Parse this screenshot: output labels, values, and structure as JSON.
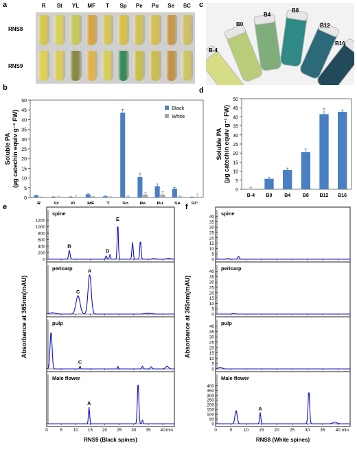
{
  "panels": {
    "a": "a",
    "b": "b",
    "c": "c",
    "d": "d",
    "e": "e",
    "f": "f"
  },
  "panel_a": {
    "columns": [
      "R",
      "St",
      "YL",
      "MF",
      "T",
      "Sp",
      "Pe",
      "Pu",
      "Se",
      "SC"
    ],
    "rows": [
      "RNS8",
      "RNS9"
    ],
    "colors_rns8": [
      "#d8c84a",
      "#d9cf5a",
      "#c9c85a",
      "#d8a540",
      "#d8c55a",
      "#d8c045",
      "#d2c055",
      "#d4c050",
      "#c89a45",
      "#cfc060"
    ],
    "colors_rns9": [
      "#e0d050",
      "#dccc55",
      "#8a8a45",
      "#e0b44a",
      "#d8cc5a",
      "#3a8a5a",
      "#c9c04a",
      "#cdbd4e",
      "#c29245",
      "#d0c460"
    ]
  },
  "panel_c": {
    "labels": [
      "B-4",
      "B0",
      "B4",
      "B8",
      "B12",
      "B16"
    ],
    "colors": [
      "#d7dd86",
      "#b9cc7a",
      "#7fae7a",
      "#2f8a86",
      "#2c6a7a",
      "#234a5a"
    ]
  },
  "chart_data": [
    {
      "type": "bar",
      "id": "b",
      "categories": [
        "R",
        "St",
        "YL",
        "MF",
        "T",
        "Sp",
        "Pe",
        "Pu",
        "Se",
        "SC"
      ],
      "series": [
        {
          "name": "Black",
          "color": "#4a7fc1",
          "values": [
            1.0,
            0.3,
            0.3,
            1.6,
            0.6,
            43.5,
            10.5,
            5.8,
            4.5,
            0.2
          ],
          "errors": [
            0.3,
            0.1,
            0.1,
            0.3,
            0.2,
            1.8,
            2.0,
            1.2,
            0.7,
            0.1
          ]
        },
        {
          "name": "White",
          "color": "#a6a6a6",
          "values": [
            0.2,
            0.2,
            0.3,
            0.4,
            0.2,
            0.5,
            1.5,
            1.5,
            0.5,
            0.3
          ],
          "errors": [
            0.1,
            0.3,
            0.9,
            0.2,
            0.2,
            0.3,
            1.2,
            1.5,
            0.3,
            1.5
          ]
        }
      ],
      "ylim": [
        0,
        50
      ],
      "yticks": [
        0,
        5,
        10,
        15,
        20,
        25,
        30,
        35,
        40,
        45,
        50
      ],
      "ylabel_line1": "Soluble PA",
      "ylabel_line2": "(µg catechin equiv g⁻¹ FW)",
      "legend_position": "top-right"
    },
    {
      "type": "bar",
      "id": "d",
      "categories": [
        "B-4",
        "B0",
        "B4",
        "B8",
        "B12",
        "B16"
      ],
      "series": [
        {
          "name": "",
          "color": "#4a7fc1",
          "values": [
            0.1,
            5.8,
            10.6,
            20.5,
            41.5,
            42.8
          ],
          "errors": [
            1.0,
            0.9,
            1.1,
            1.8,
            3.0,
            1.0
          ]
        }
      ],
      "ylim": [
        0,
        50
      ],
      "yticks": [
        0,
        5,
        10,
        15,
        20,
        25,
        30,
        35,
        40,
        45,
        50
      ],
      "ylabel_line1": "Soluble PA",
      "ylabel_line2": "(µg catechin equiv g⁻¹ FW)"
    },
    {
      "type": "line",
      "id": "e",
      "ylabel": "Absorbance at 365nm(mAU)",
      "xlabel": "RNS9 (Black spines)",
      "xticks": [
        0,
        5,
        10,
        15,
        20,
        25,
        30,
        35,
        40
      ],
      "x_unit": "min",
      "xlim": [
        0,
        44
      ],
      "subplots": [
        {
          "name": "spine",
          "ylim": [
            0,
            1350
          ],
          "yticks": [
            0,
            200,
            400,
            600,
            800,
            1000,
            1200
          ],
          "peaks": [
            [
              7.8,
              280,
              0.25
            ],
            [
              20.5,
              110,
              0.2
            ],
            [
              21.8,
              140,
              0.2
            ],
            [
              24.5,
              1120,
              0.2
            ],
            [
              29.6,
              520,
              0.22
            ],
            [
              32.3,
              580,
              0.22
            ],
            [
              37,
              20,
              0.5
            ],
            [
              42,
              30,
              0.6
            ]
          ],
          "annotations": [
            {
              "x": 7.8,
              "y": 280,
              "label": "B"
            },
            {
              "x": 21,
              "y": 140,
              "label": "D"
            },
            {
              "x": 24.5,
              "y": 1120,
              "label": "E"
            }
          ]
        },
        {
          "name": "pericarp",
          "ylim": [
            0,
            1
          ],
          "yticks": [],
          "peaks": [
            [
              10.8,
              0.42,
              0.7
            ],
            [
              14.8,
              0.9,
              0.55
            ],
            [
              2,
              0.03,
              1
            ],
            [
              35,
              0.02,
              1
            ]
          ],
          "annotations": [
            {
              "x": 10.8,
              "y": 0.42,
              "label": "C"
            },
            {
              "x": 14.8,
              "y": 0.9,
              "label": "A"
            }
          ]
        },
        {
          "name": "pulp",
          "ylim": [
            0,
            1
          ],
          "yticks": [],
          "peaks": [
            [
              1.5,
              0.85,
              0.35
            ],
            [
              11.5,
              0.07,
              0.15
            ],
            [
              24.5,
              0.07,
              0.12
            ],
            [
              33,
              0.06,
              0.25
            ],
            [
              36,
              0.05,
              0.3
            ],
            [
              41.5,
              0.06,
              0.5
            ]
          ],
          "annotations": [
            {
              "x": 11.5,
              "y": 0.07,
              "label": "C"
            }
          ]
        },
        {
          "name": "Male flower",
          "ylim": [
            0,
            1
          ],
          "yticks": [],
          "peaks": [
            [
              14.6,
              0.38,
              0.2
            ],
            [
              31.5,
              0.95,
              0.25
            ],
            [
              33,
              0.08,
              0.2
            ]
          ],
          "annotations": [
            {
              "x": 14.6,
              "y": 0.38,
              "label": "A"
            }
          ]
        }
      ]
    },
    {
      "type": "line",
      "id": "f",
      "ylabel": "Absorbance at 365nm(mAU)",
      "xlabel": "RNS8 (White spines)",
      "xticks": [
        0,
        5,
        10,
        15,
        20,
        25,
        30,
        35,
        40
      ],
      "x_unit": "min",
      "xlim": [
        0,
        44
      ],
      "subplots": [
        {
          "name": "spine",
          "ylim": [
            0,
            41
          ],
          "yticks": [
            0,
            5,
            10,
            15,
            20,
            25,
            30,
            35,
            40
          ],
          "peaks": [
            [
              7.5,
              2.8,
              0.25
            ],
            [
              4,
              0.5,
              0.5
            ]
          ],
          "annotations": []
        },
        {
          "name": "pericarp",
          "ylim": [
            0,
            41
          ],
          "yticks": [
            0,
            5,
            10,
            15,
            20,
            25,
            30,
            35,
            40
          ],
          "peaks": [
            [
              6,
              0.4,
              0.5
            ]
          ],
          "annotations": []
        },
        {
          "name": "pulp",
          "ylim": [
            0,
            41
          ],
          "yticks": [
            0,
            5,
            10,
            15,
            20,
            25,
            30,
            35,
            40
          ],
          "peaks": [
            [
              1.5,
              1.5,
              0.6
            ]
          ],
          "annotations": []
        },
        {
          "name": "Male flower",
          "ylim": [
            0,
            460
          ],
          "yticks": [
            0,
            50,
            100,
            150,
            200,
            250,
            300,
            350,
            400
          ],
          "peaks": [
            [
              6.7,
              140,
              0.35
            ],
            [
              14.6,
              120,
              0.2
            ],
            [
              30.5,
              350,
              0.25
            ],
            [
              39,
              18,
              0.6
            ]
          ],
          "annotations": [
            {
              "x": 14.6,
              "y": 120,
              "label": "A"
            }
          ]
        }
      ]
    }
  ]
}
